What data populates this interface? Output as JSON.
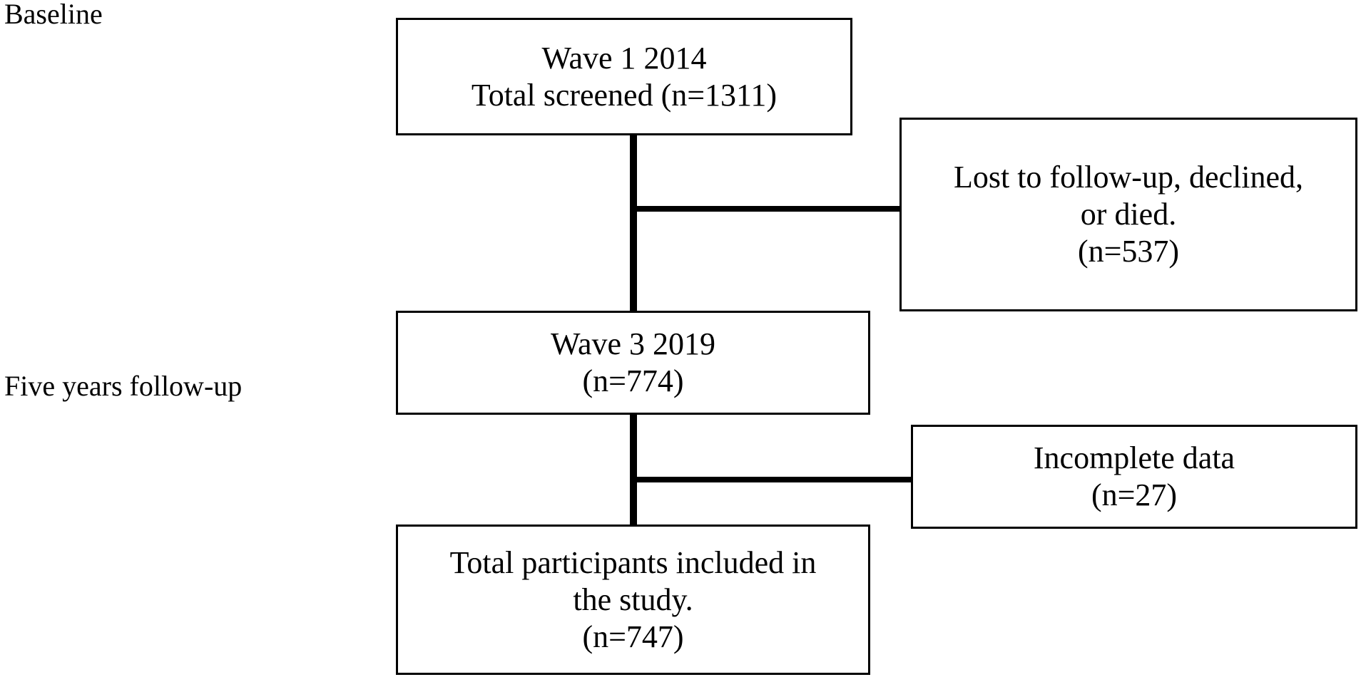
{
  "stage_labels": {
    "baseline": "Baseline",
    "followup": "Five years follow-up"
  },
  "boxes": {
    "wave1": {
      "line1": "Wave 1 2014",
      "line2": "Total screened (n=1311)"
    },
    "lost": {
      "line1": "Lost to follow-up, declined,",
      "line2": "or died.",
      "line3": "(n=537)"
    },
    "wave3": {
      "line1": "Wave 3 2019",
      "line2": "(n=774)"
    },
    "incomplete": {
      "line1": "Incomplete data",
      "line2": "(n=27)"
    },
    "total": {
      "line1": "Total participants included in",
      "line2": "the study.",
      "line3": "(n=747)"
    }
  },
  "colors": {
    "stroke": "#000000",
    "background": "#ffffff"
  }
}
